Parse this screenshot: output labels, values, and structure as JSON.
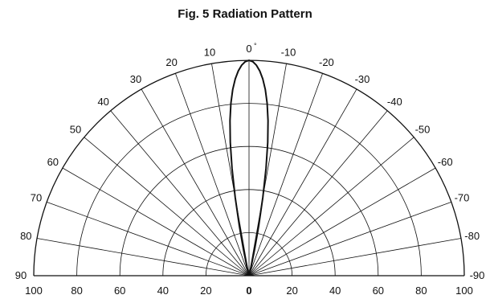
{
  "chart_data": {
    "type": "polar-line",
    "title": "Fig. 5  Radiation Pattern",
    "angle_unit_label": "°",
    "angle_ticks": [
      "90",
      "80",
      "70",
      "60",
      "50",
      "40",
      "30",
      "20",
      "10",
      "0",
      "-10",
      "-20",
      "-30",
      "-40",
      "-50",
      "-60",
      "-70",
      "-80",
      "-90"
    ],
    "angle_tick_values": [
      90,
      80,
      70,
      60,
      50,
      40,
      30,
      20,
      10,
      0,
      -10,
      -20,
      -30,
      -40,
      -50,
      -60,
      -70,
      -80,
      -90
    ],
    "radial_tick_labels": [
      "100",
      "80",
      "60",
      "40",
      "20",
      "0",
      "20",
      "40",
      "60",
      "80",
      "100"
    ],
    "radial_range": [
      0,
      100
    ],
    "radial_rings": [
      20,
      40,
      60,
      80,
      100
    ],
    "angle_spokes_step": 10,
    "grid": true,
    "series": [
      {
        "angle_deg": [
          0,
          1,
          2,
          3,
          4,
          5,
          6,
          7,
          8,
          9,
          10,
          11,
          12,
          13,
          14
        ],
        "relative_intensity": [
          100,
          99.4,
          97.8,
          95.2,
          91.6,
          86.8,
          80.5,
          72.5,
          62.5,
          50.5,
          37,
          23.5,
          12.5,
          5,
          0
        ]
      }
    ]
  }
}
